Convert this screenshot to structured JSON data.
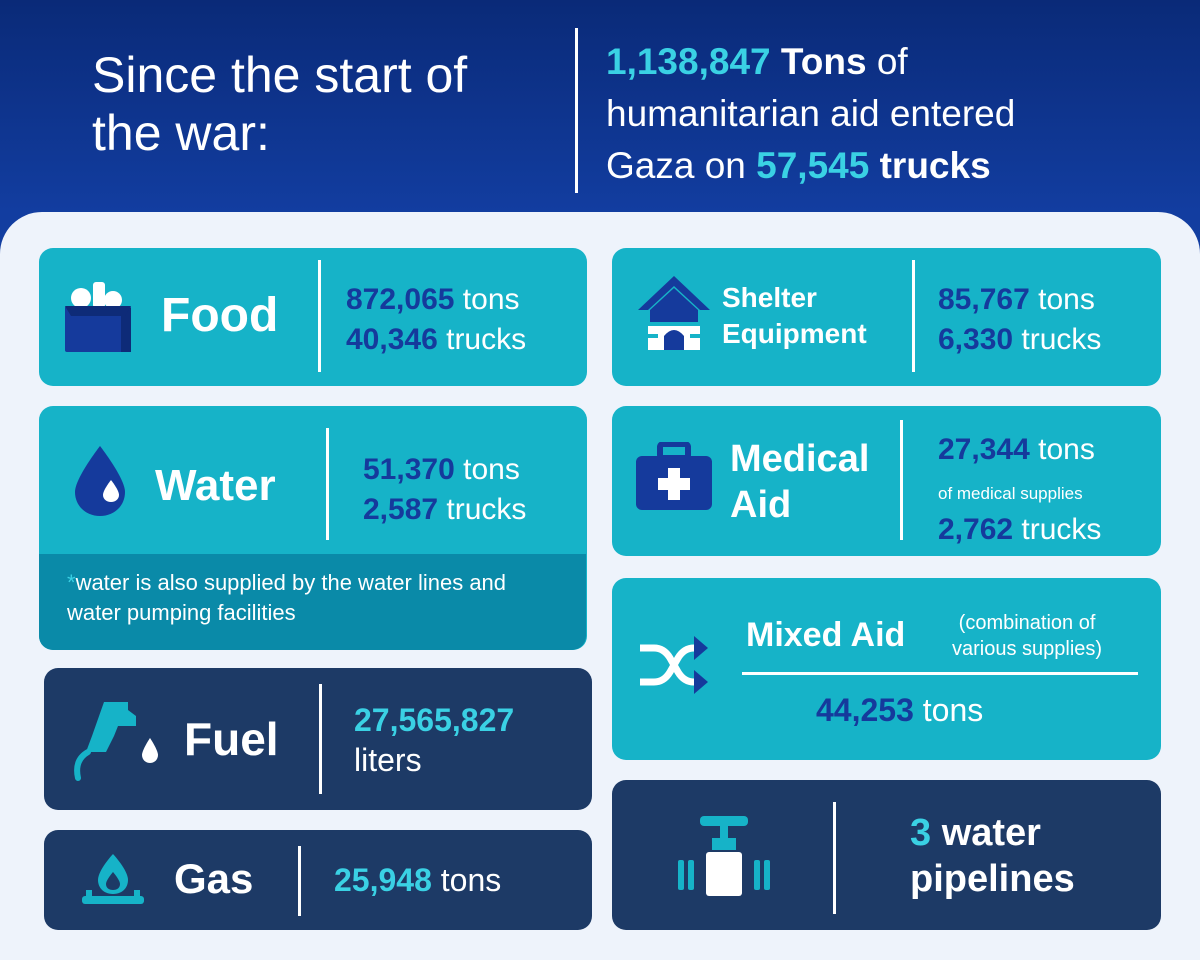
{
  "header": {
    "left_title": "Since the start of the war:",
    "total_tons": "1,138,847",
    "tons_word": "Tons",
    "of_word": "of",
    "line2": "humanitarian aid entered",
    "gaza_on": "Gaza on",
    "total_trucks": "57,545",
    "trucks_word": "trucks"
  },
  "food": {
    "label": "Food",
    "tons_value": "872,065",
    "tons_unit": "tons",
    "trucks_value": "40,346",
    "trucks_unit": "trucks",
    "icon": "grocery-bag-icon"
  },
  "shelter": {
    "label_line1": "Shelter",
    "label_line2": "Equipment",
    "tons_value": "85,767",
    "tons_unit": "tons",
    "trucks_value": "6,330",
    "trucks_unit": "trucks",
    "icon": "house-icon"
  },
  "water": {
    "label": "Water",
    "tons_value": "51,370",
    "tons_unit": "tons",
    "trucks_value": "2,587",
    "trucks_unit": "trucks",
    "note_mark": "*",
    "note_text": "water is also supplied by the water lines and water pumping facilities",
    "icon": "water-drop-icon"
  },
  "medical": {
    "label_line1": "Medical",
    "label_line2": "Aid",
    "tons_value": "27,344",
    "tons_unit": "tons",
    "sub": "of medical supplies",
    "trucks_value": "2,762",
    "trucks_unit": "trucks",
    "icon": "first-aid-kit-icon"
  },
  "mixed": {
    "label": "Mixed Aid",
    "note_line1": "(combination of",
    "note_line2": "various supplies)",
    "tons_value": "44,253",
    "tons_unit": "tons",
    "icon": "shuffle-icon"
  },
  "fuel": {
    "label": "Fuel",
    "value": "27,565,827",
    "unit": "liters",
    "icon": "fuel-nozzle-icon"
  },
  "gas": {
    "label": "Gas",
    "value": "25,948",
    "unit": "tons",
    "icon": "gas-flame-icon"
  },
  "pipelines": {
    "value": "3",
    "line1_rest": "water",
    "line2": "pipelines",
    "icon": "pipe-valve-icon"
  },
  "colors": {
    "teal": "#16b3c8",
    "navy": "#1d3a66",
    "cyan": "#3ad1e4",
    "stat_blue": "#153a9c"
  }
}
